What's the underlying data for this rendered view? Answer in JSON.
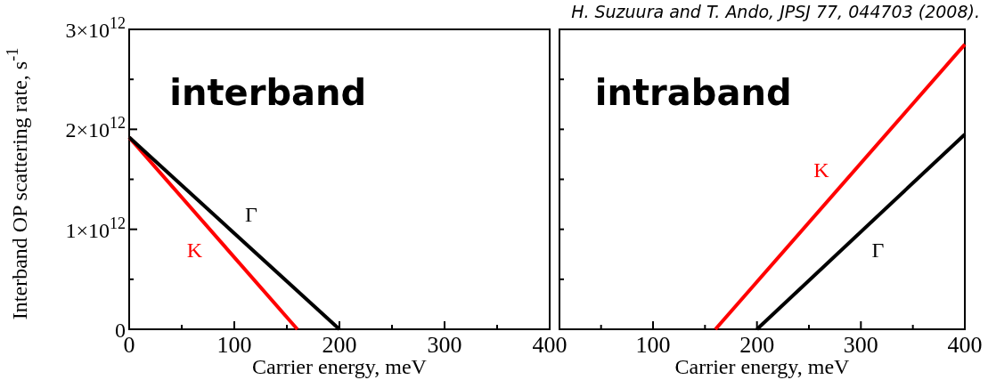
{
  "chart_data": [
    {
      "type": "line",
      "title": "interband",
      "xlabel": "Carrier energy, meV",
      "ylabel": "Interband OP scattering rate, s$^{-1}$",
      "xlim": [
        0,
        400
      ],
      "xticks": [
        0,
        {
          "value": 50,
          "label": null
        },
        100,
        {
          "value": 150,
          "label": null
        },
        200,
        {
          "value": 250,
          "label": null
        },
        300,
        {
          "value": 350,
          "label": null
        },
        400
      ],
      "ylim": [
        0,
        3000000000000.0
      ],
      "yticks": [
        {
          "value": 0,
          "label": "0"
        },
        {
          "value": 500000000000.0,
          "label": null
        },
        {
          "value": 1000000000000.0,
          "label": "1×10$^{12}$"
        },
        {
          "value": 1500000000000.0,
          "label": null
        },
        {
          "value": 2000000000000.0,
          "label": "2×10$^{12}$"
        },
        {
          "value": 2500000000000.0,
          "label": null
        },
        {
          "value": 3000000000000.0,
          "label": "3×10$^{12}$"
        }
      ],
      "grid": false,
      "legend": false,
      "marker": "none",
      "line_style": "solid",
      "series": [
        {
          "name": "K",
          "color": "#ff0000",
          "x": [
            0,
            160
          ],
          "values": [
            1920000000000.0,
            0
          ]
        },
        {
          "name": "Γ",
          "color": "#000000",
          "x": [
            0,
            200
          ],
          "values": [
            1920000000000.0,
            0
          ]
        }
      ]
    },
    {
      "type": "line",
      "title": "intraband",
      "xlabel": "Carrier energy, meV",
      "annotations": [
        "H. Suzuura and T. Ando, JPSJ 77, 044703 (2008)."
      ],
      "xlim": [
        10,
        400
      ],
      "xticks": [
        {
          "value": 50,
          "label": null
        },
        100,
        {
          "value": 150,
          "label": null
        },
        200,
        {
          "value": 250,
          "label": null
        },
        300,
        {
          "value": 350,
          "label": null
        },
        400
      ],
      "ylim": [
        0,
        3000000000000.0
      ],
      "yticks": [
        {
          "value": 500000000000.0,
          "label": null
        },
        {
          "value": 1000000000000.0,
          "label": null
        },
        {
          "value": 1500000000000.0,
          "label": null
        },
        {
          "value": 2000000000000.0,
          "label": null
        },
        {
          "value": 2500000000000.0,
          "label": null
        }
      ],
      "tick_labels": "x",
      "grid": false,
      "legend": false,
      "marker": "none",
      "line_style": "solid",
      "series": [
        {
          "name": "K",
          "color": "#ff0000",
          "x": [
            160,
            400
          ],
          "values": [
            0,
            2850000000000.0
          ]
        },
        {
          "name": "Γ",
          "color": "#000000",
          "x": [
            200,
            400
          ],
          "values": [
            0,
            1950000000000.0
          ]
        }
      ]
    }
  ]
}
